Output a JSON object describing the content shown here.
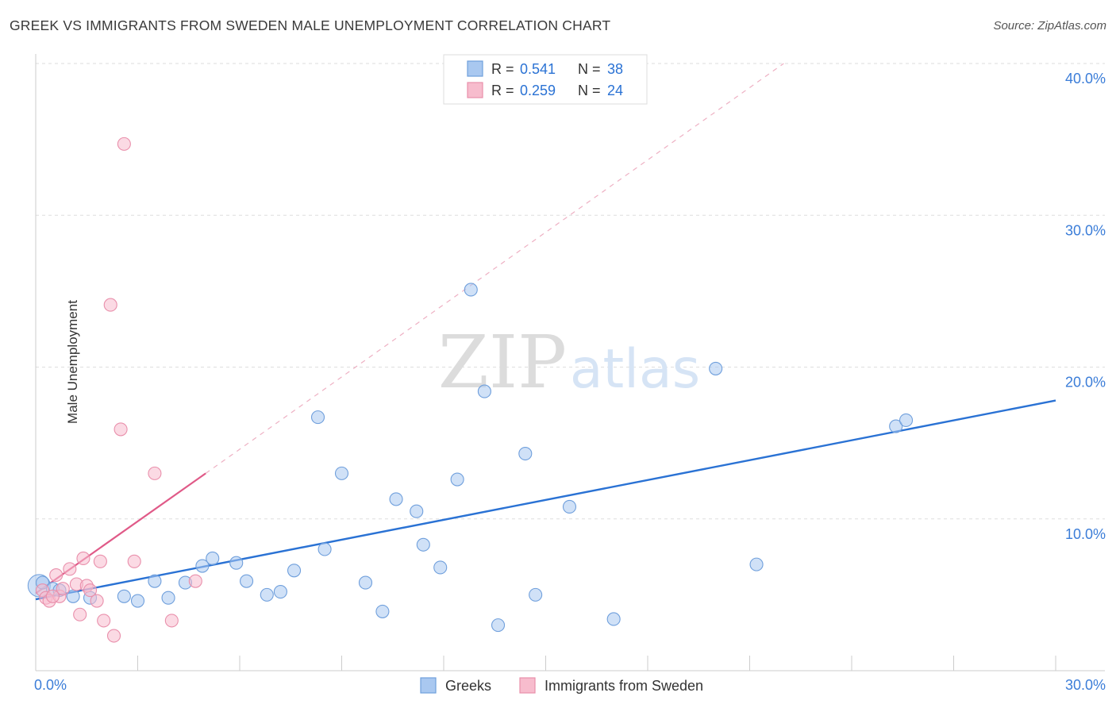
{
  "title": "GREEK VS IMMIGRANTS FROM SWEDEN MALE UNEMPLOYMENT CORRELATION CHART",
  "source": "Source: ZipAtlas.com",
  "watermark": {
    "zip": "ZIP",
    "atlas": "atlas"
  },
  "legend_top": {
    "rows": [
      {
        "r_label": "R =",
        "r_value": "0.541",
        "n_label": "N =",
        "n_value": "38",
        "color": "#a9c8f0",
        "stroke": "#6f9fdc"
      },
      {
        "r_label": "R =",
        "r_value": "0.259",
        "n_label": "N =",
        "n_value": "24",
        "color": "#f7bccd",
        "stroke": "#e98fab"
      }
    ]
  },
  "chart_data": {
    "type": "scatter",
    "xlabel": "",
    "ylabel": "Male Unemployment",
    "xlim": [
      0,
      30
    ],
    "ylim": [
      0,
      40
    ],
    "x_tick_labels": [
      "0.0%",
      "30.0%"
    ],
    "y_tick_labels": [
      "10.0%",
      "20.0%",
      "30.0%",
      "40.0%"
    ],
    "y_ticks": [
      10,
      20,
      30,
      40
    ],
    "grid": true,
    "legend_position": "bottom-center",
    "series": [
      {
        "name": "Greeks",
        "color": "#a9c8f0",
        "stroke": "#6f9fdc",
        "line_color": "#2a72d4",
        "trend": {
          "x": [
            0.0,
            30.0
          ],
          "y": [
            4.7,
            17.8
          ]
        },
        "points": [
          [
            0.2,
            5.8
          ],
          [
            0.5,
            5.4
          ],
          [
            0.7,
            5.3
          ],
          [
            1.1,
            4.9
          ],
          [
            1.6,
            4.8
          ],
          [
            2.6,
            4.9
          ],
          [
            3.0,
            4.6
          ],
          [
            3.5,
            5.9
          ],
          [
            3.9,
            4.8
          ],
          [
            4.4,
            5.8
          ],
          [
            4.9,
            6.9
          ],
          [
            5.2,
            7.4
          ],
          [
            5.9,
            7.1
          ],
          [
            6.2,
            5.9
          ],
          [
            6.8,
            5.0
          ],
          [
            7.2,
            5.2
          ],
          [
            7.6,
            6.6
          ],
          [
            8.3,
            16.7
          ],
          [
            8.5,
            8.0
          ],
          [
            9.0,
            13.0
          ],
          [
            9.7,
            5.8
          ],
          [
            10.2,
            3.9
          ],
          [
            10.6,
            11.3
          ],
          [
            11.2,
            10.5
          ],
          [
            11.4,
            8.3
          ],
          [
            11.9,
            6.8
          ],
          [
            12.4,
            12.6
          ],
          [
            12.8,
            25.1
          ],
          [
            13.2,
            18.4
          ],
          [
            13.6,
            3.0
          ],
          [
            14.4,
            14.3
          ],
          [
            14.7,
            5.0
          ],
          [
            15.7,
            10.8
          ],
          [
            17.0,
            3.4
          ],
          [
            20.0,
            19.9
          ],
          [
            21.2,
            7.0
          ],
          [
            25.3,
            16.1
          ],
          [
            25.6,
            16.5
          ]
        ]
      },
      {
        "name": "Immigrants from Sweden",
        "color": "#f7bccd",
        "stroke": "#e98fab",
        "line_color": "#e05a88",
        "trend": {
          "x": [
            0.0,
            5.0
          ],
          "y": [
            5.1,
            13.0
          ]
        },
        "trend_dashed": {
          "x": [
            5.0,
            22.0
          ],
          "y": [
            13.0,
            40.0
          ]
        },
        "points": [
          [
            0.2,
            5.3
          ],
          [
            0.3,
            4.8
          ],
          [
            0.4,
            4.6
          ],
          [
            0.6,
            6.3
          ],
          [
            0.7,
            4.9
          ],
          [
            0.8,
            5.4
          ],
          [
            1.0,
            6.7
          ],
          [
            1.2,
            5.7
          ],
          [
            1.3,
            3.7
          ],
          [
            1.4,
            7.4
          ],
          [
            1.5,
            5.6
          ],
          [
            1.6,
            5.3
          ],
          [
            1.8,
            4.6
          ],
          [
            1.9,
            7.2
          ],
          [
            2.0,
            3.3
          ],
          [
            2.2,
            24.1
          ],
          [
            2.3,
            2.3
          ],
          [
            2.5,
            15.9
          ],
          [
            2.6,
            34.7
          ],
          [
            2.9,
            7.2
          ],
          [
            3.5,
            13.0
          ],
          [
            4.0,
            3.3
          ],
          [
            4.7,
            5.9
          ],
          [
            0.5,
            4.9
          ]
        ]
      }
    ]
  }
}
